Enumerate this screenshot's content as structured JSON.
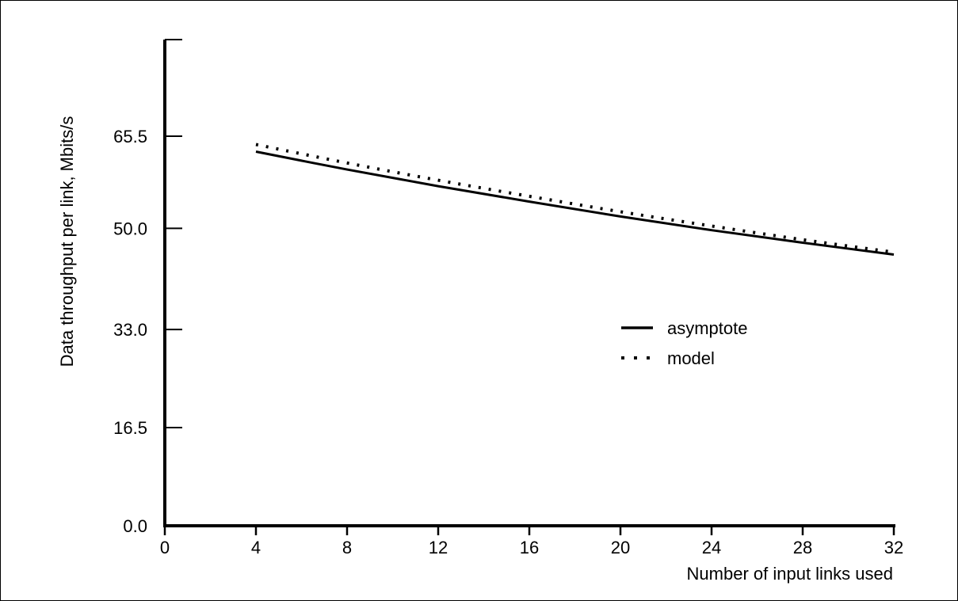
{
  "chart_data": {
    "type": "line",
    "title": "",
    "xlabel": "Number of input links used",
    "ylabel": "Data throughput per link, Mbits/s",
    "xlim": [
      0,
      32
    ],
    "ylim": [
      0,
      82
    ],
    "x_ticks": [
      0,
      4,
      8,
      12,
      16,
      20,
      24,
      28,
      32
    ],
    "x_tick_labels": [
      "0",
      "4",
      "8",
      "12",
      "16",
      "20",
      "24",
      "28",
      "32"
    ],
    "y_ticks": [
      0.0,
      16.5,
      33.0,
      50.0,
      65.5
    ],
    "y_tick_labels": [
      "0.0",
      "16.5",
      "33.0",
      "50.0",
      "65.5"
    ],
    "grid": false,
    "legend_position": "right-middle",
    "series": [
      {
        "name": "asymptote",
        "style": "solid",
        "color": "#000000",
        "x": [
          4,
          8,
          12,
          16,
          20,
          24,
          28,
          32
        ],
        "y": [
          62.9,
          59.9,
          57.1,
          54.5,
          52.0,
          49.7,
          47.6,
          45.6
        ]
      },
      {
        "name": "model",
        "style": "dotted",
        "color": "#000000",
        "x": [
          4,
          8,
          12,
          16,
          20,
          24,
          28,
          32
        ],
        "y": [
          64.1,
          61.0,
          58.1,
          55.4,
          52.8,
          50.4,
          48.1,
          46.0
        ]
      }
    ]
  }
}
